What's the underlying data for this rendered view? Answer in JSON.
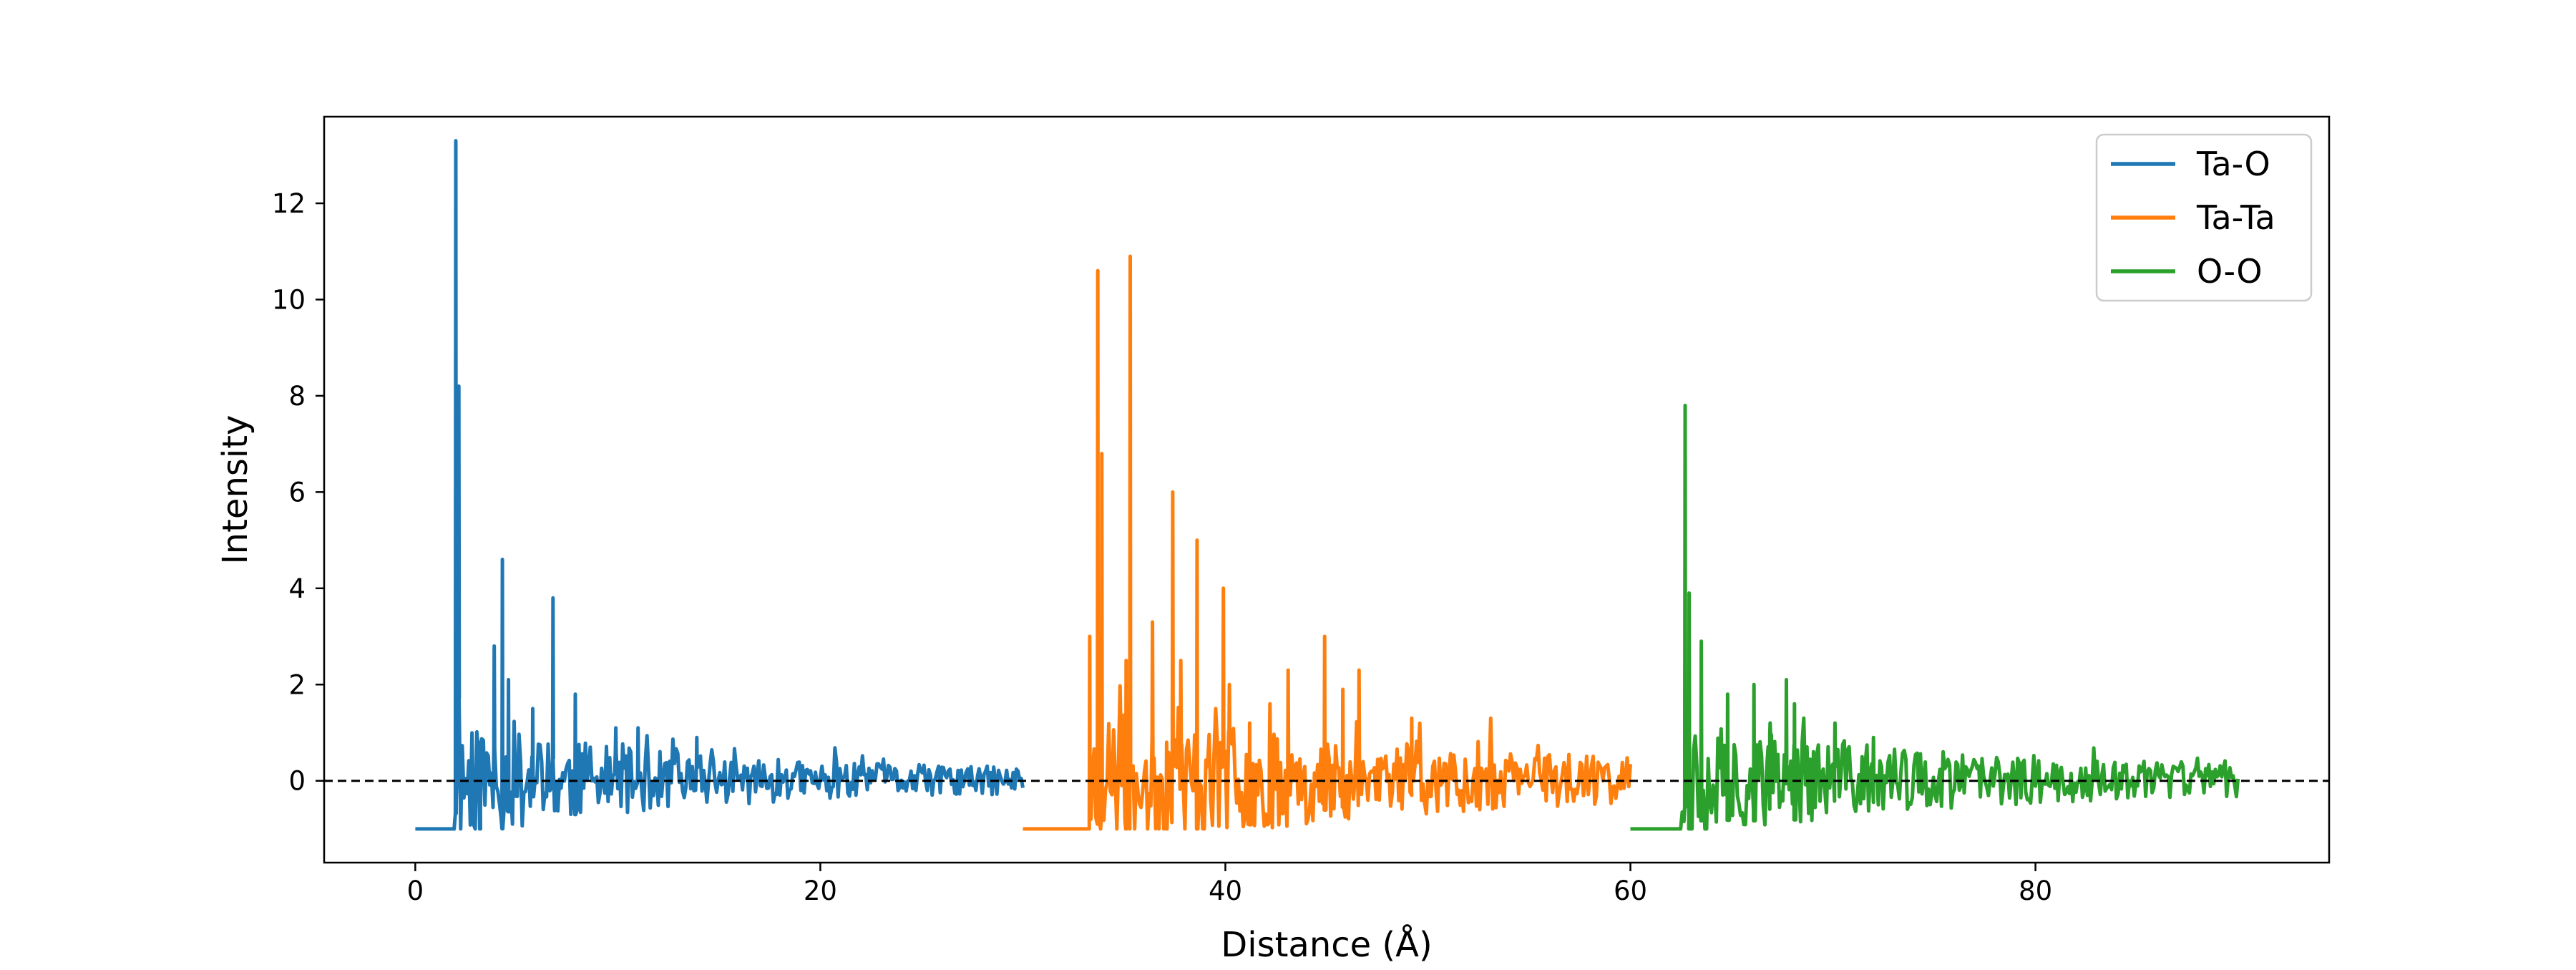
{
  "chart_data": {
    "type": "line",
    "xlabel": "Distance (Å)",
    "ylabel": "Intensity",
    "xlim": [
      -4.5,
      94.5
    ],
    "ylim": [
      -1.7,
      13.8
    ],
    "x_ticks": [
      0,
      20,
      40,
      60,
      80
    ],
    "y_ticks": [
      0,
      2,
      4,
      6,
      8,
      10,
      12
    ],
    "grid": false,
    "legend_position": "upper right",
    "reference_line": {
      "y": 0,
      "style": "dashed",
      "color": "#000000"
    },
    "series": [
      {
        "name": "Ta-O",
        "color": "#1f77b4",
        "x_start": 0,
        "x_end": 30,
        "baseline": -1,
        "onset": 2.0,
        "noise_decay": 10,
        "noise_amp": 1.2,
        "seed": 11,
        "peaks": [
          {
            "x": 2.0,
            "y": 13.3
          },
          {
            "x": 2.15,
            "y": 8.2
          },
          {
            "x": 3.2,
            "y": 0.8
          },
          {
            "x": 3.9,
            "y": 2.8
          },
          {
            "x": 4.3,
            "y": 4.6
          },
          {
            "x": 4.6,
            "y": 2.1
          },
          {
            "x": 5.0,
            "y": 0.5
          },
          {
            "x": 5.8,
            "y": 1.5
          },
          {
            "x": 6.8,
            "y": 3.8
          },
          {
            "x": 7.9,
            "y": 1.8
          },
          {
            "x": 9.9,
            "y": 1.1
          },
          {
            "x": 11.0,
            "y": 1.1
          },
          {
            "x": 13.9,
            "y": 0.9
          }
        ]
      },
      {
        "name": "Ta-Ta",
        "color": "#ff7f0e",
        "x_start": 30,
        "x_end": 60,
        "baseline": -1,
        "onset": 33.3,
        "noise_decay": 16,
        "noise_amp": 1.5,
        "seed": 23,
        "peaks": [
          {
            "x": 33.3,
            "y": 3.0
          },
          {
            "x": 33.7,
            "y": 10.6
          },
          {
            "x": 33.9,
            "y": 6.8
          },
          {
            "x": 35.1,
            "y": 2.5
          },
          {
            "x": 35.3,
            "y": 10.9
          },
          {
            "x": 36.4,
            "y": 3.3
          },
          {
            "x": 37.1,
            "y": 0.8
          },
          {
            "x": 37.4,
            "y": 6.0
          },
          {
            "x": 37.8,
            "y": 2.5
          },
          {
            "x": 38.6,
            "y": 5.0
          },
          {
            "x": 39.9,
            "y": 4.0
          },
          {
            "x": 40.2,
            "y": 2.0
          },
          {
            "x": 41.2,
            "y": 1.2
          },
          {
            "x": 42.2,
            "y": 1.6
          },
          {
            "x": 43.1,
            "y": 2.3
          },
          {
            "x": 44.9,
            "y": 3.0
          },
          {
            "x": 45.8,
            "y": 1.9
          },
          {
            "x": 46.6,
            "y": 2.3
          },
          {
            "x": 49.2,
            "y": 1.3
          },
          {
            "x": 53.1,
            "y": 1.3
          }
        ]
      },
      {
        "name": "O-O",
        "color": "#2ca02c",
        "x_start": 60,
        "x_end": 90,
        "baseline": -1,
        "onset": 62.5,
        "noise_decay": 12,
        "noise_amp": 1.2,
        "seed": 37,
        "peaks": [
          {
            "x": 62.7,
            "y": 7.8
          },
          {
            "x": 62.9,
            "y": 3.9
          },
          {
            "x": 63.5,
            "y": 2.9
          },
          {
            "x": 64.8,
            "y": 1.8
          },
          {
            "x": 66.1,
            "y": 2.0
          },
          {
            "x": 66.9,
            "y": 1.2
          },
          {
            "x": 67.7,
            "y": 2.1
          },
          {
            "x": 68.1,
            "y": 1.6
          },
          {
            "x": 70.1,
            "y": 1.2
          },
          {
            "x": 72.0,
            "y": 0.9
          }
        ]
      }
    ]
  }
}
